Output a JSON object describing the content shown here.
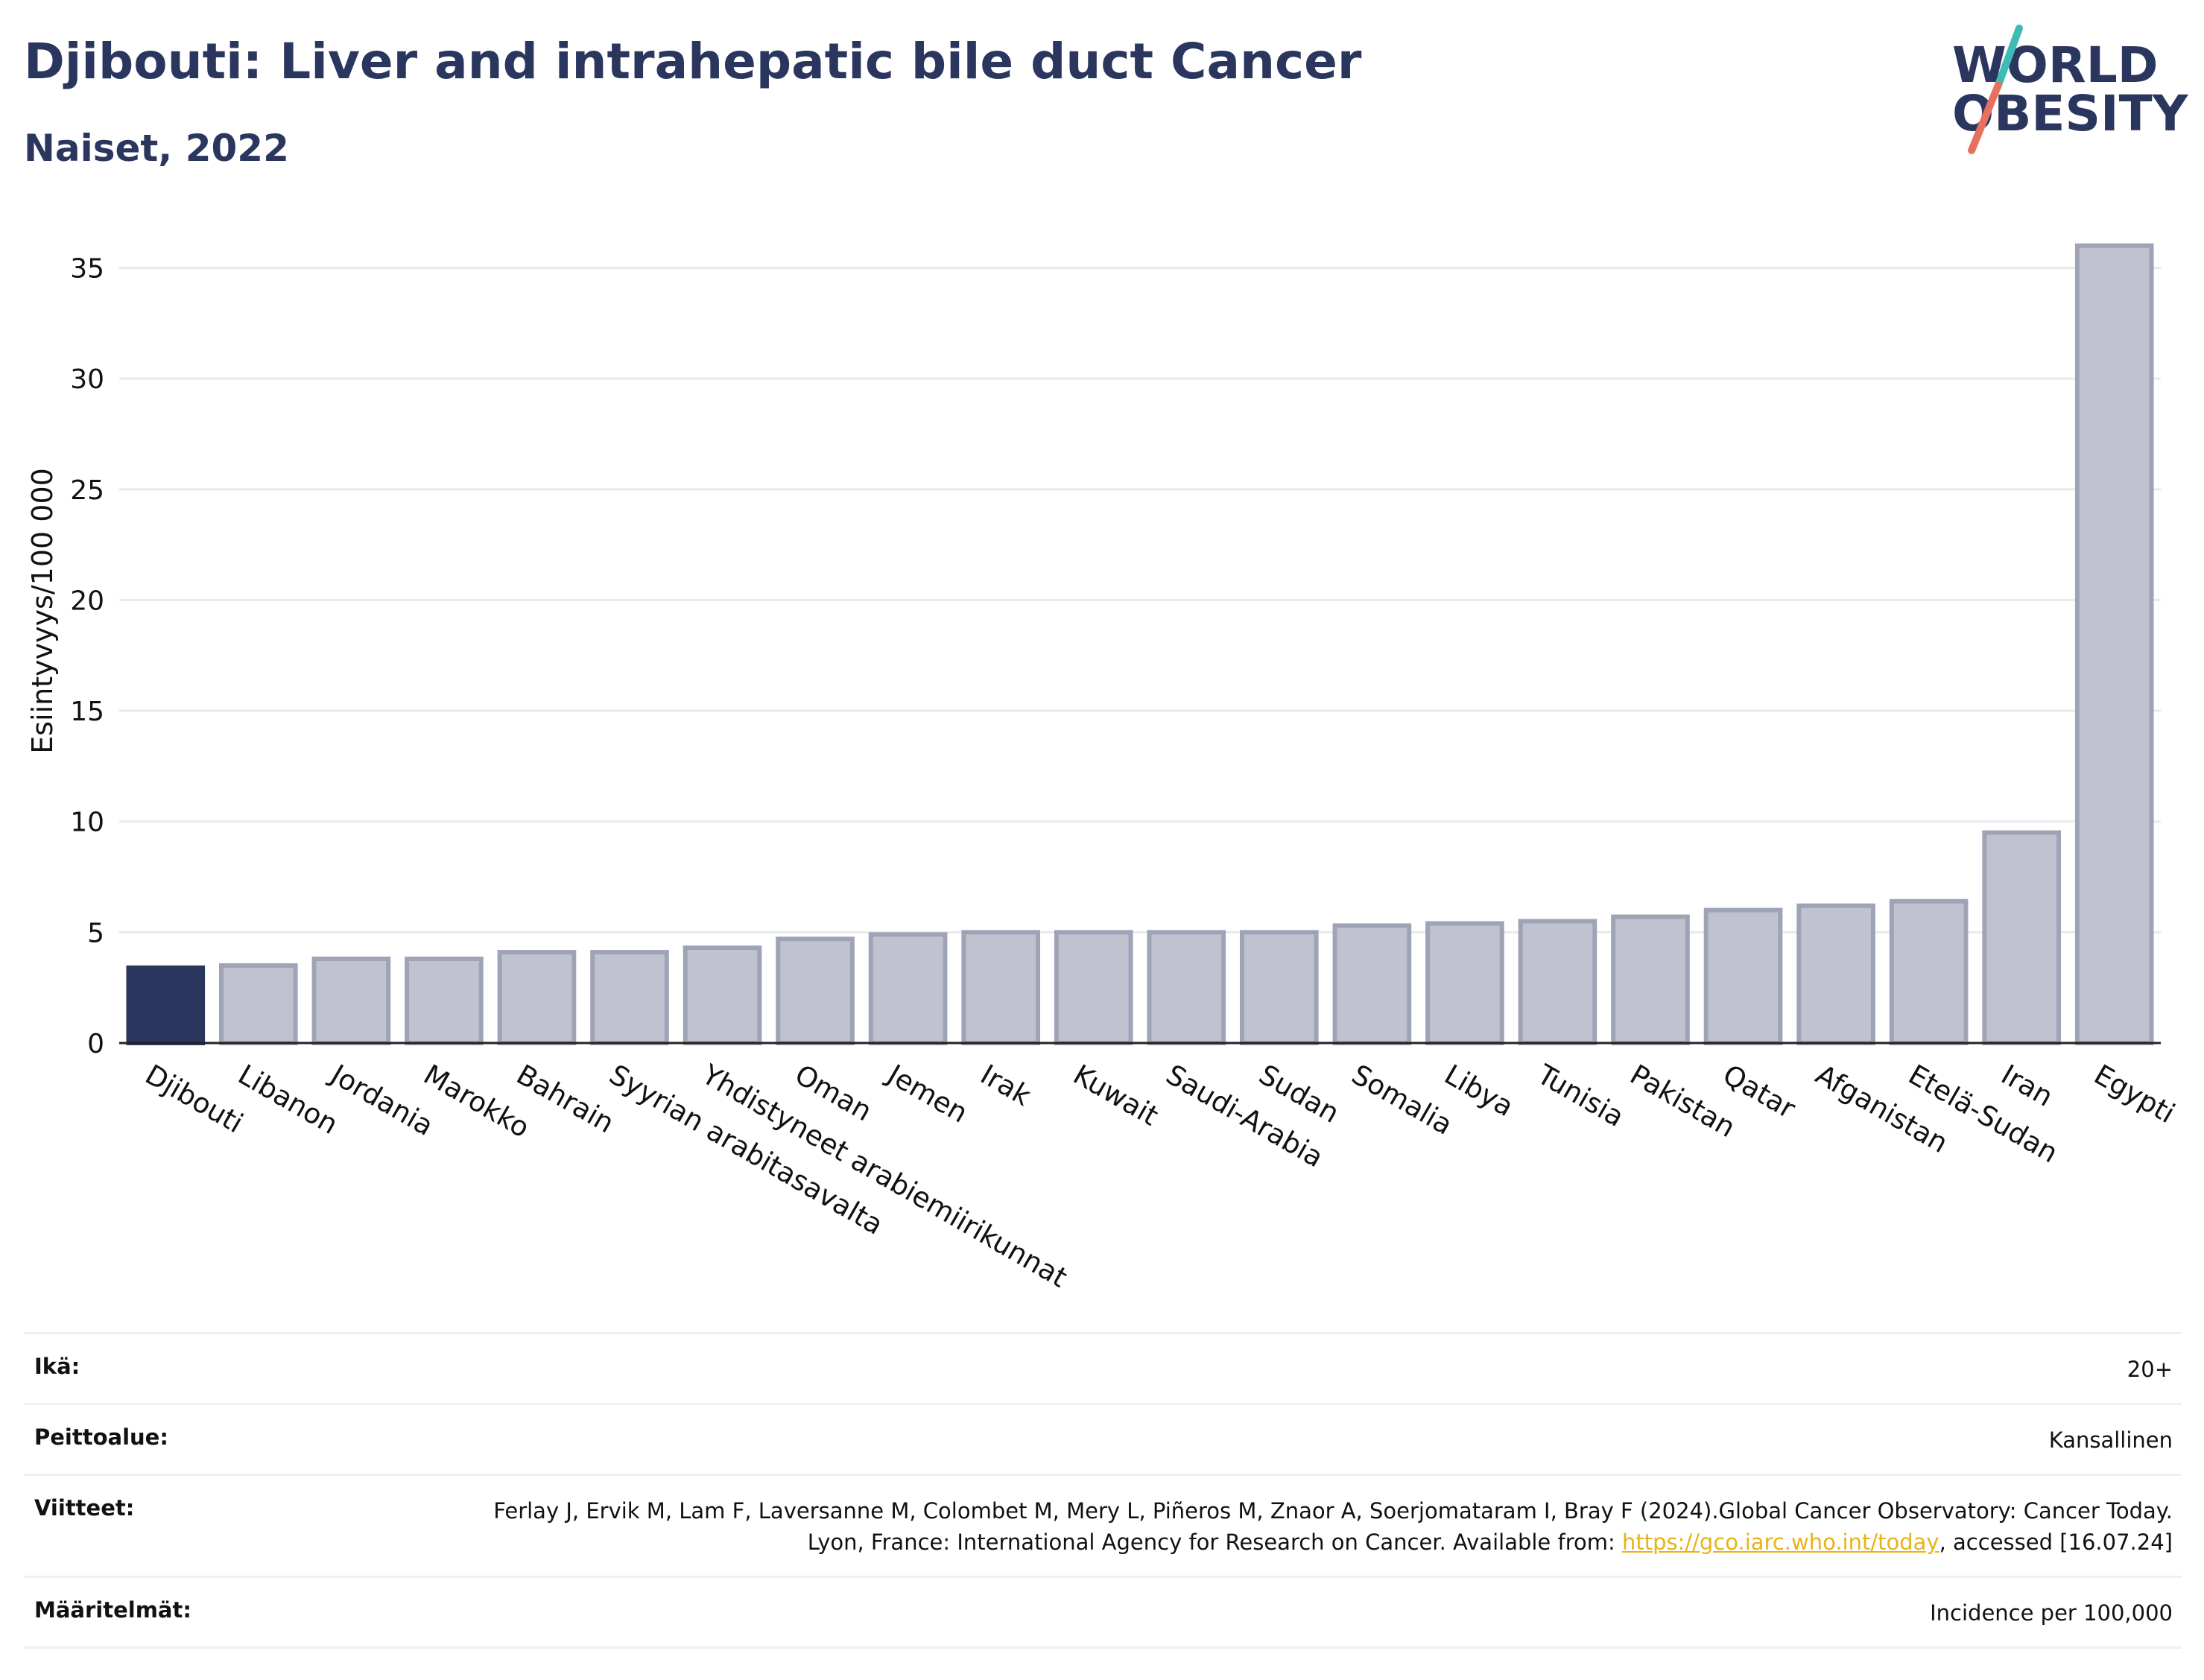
{
  "header": {
    "title": "Djibouti: Liver and intrahepatic bile duct Cancer",
    "subtitle": "Naiset, 2022",
    "logo_text": [
      "WORLD",
      "OBESITY"
    ]
  },
  "chart_data": {
    "type": "bar",
    "ylabel": "Esiintyvyys/100 000",
    "ylim": [
      0,
      37
    ],
    "yticks": [
      0,
      5,
      10,
      15,
      20,
      25,
      30,
      35
    ],
    "grid": true,
    "highlight_category": "Djibouti",
    "categories": [
      "Djibouti",
      "Libanon",
      "Jordania",
      "Marokko",
      "Bahrain",
      "Syyrian arabitasavalta",
      "Yhdistyneet arabiemiirikunnat",
      "Oman",
      "Jemen",
      "Irak",
      "Kuwait",
      "Saudi-Arabia",
      "Sudan",
      "Somalia",
      "Libya",
      "Tunisia",
      "Pakistan",
      "Qatar",
      "Afganistan",
      "Etelä-Sudan",
      "Iran",
      "Egypti"
    ],
    "values": [
      3.4,
      3.5,
      3.8,
      3.8,
      4.1,
      4.1,
      4.3,
      4.7,
      4.9,
      5.0,
      5.0,
      5.0,
      5.0,
      5.3,
      5.4,
      5.5,
      5.7,
      6.0,
      6.2,
      6.4,
      9.5,
      36.0
    ],
    "colors": {
      "highlight": "#2b365f",
      "other_fill": "#c0c3cf",
      "other_stroke": "#9ea3b6"
    }
  },
  "meta": {
    "age_label": "Ikä:",
    "age_value": "20+",
    "coverage_label": "Peittoalue:",
    "coverage_value": "Kansallinen",
    "references_label": "Viitteet:",
    "references_pre": "Ferlay J, Ervik M, Lam F, Laversanne M, Colombet M, Mery L, Piñeros M, Znaor A, Soerjomataram I, Bray F (2024).Global Cancer Observatory: Cancer Today. Lyon, France: International Agency for Research on Cancer. Available from: ",
    "references_link": "https://gco.iarc.who.int/today",
    "references_post": ", accessed [16.07.24]",
    "definitions_label": "Määritelmät:",
    "definitions_value": "Incidence per 100,000"
  }
}
